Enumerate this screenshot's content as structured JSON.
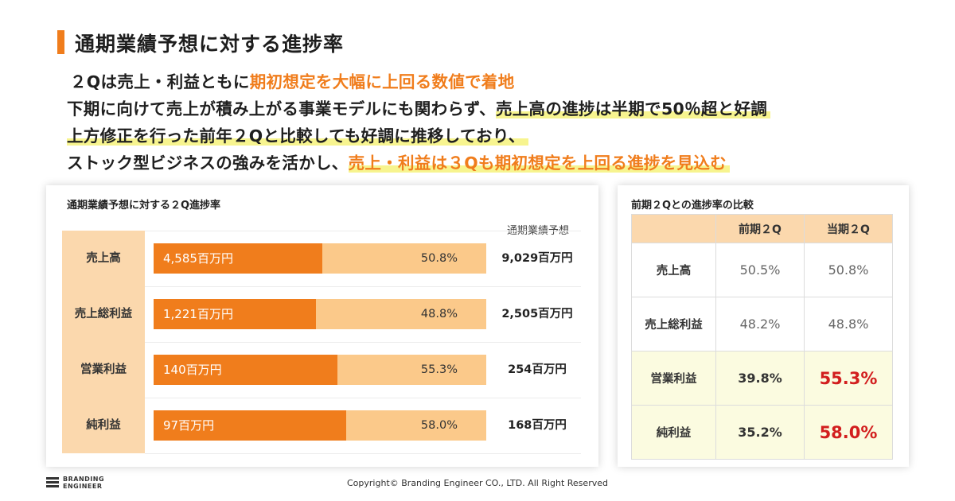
{
  "slide_title": "通期業績予想に対する進捗率",
  "messages": {
    "line1_a": "２Qは売上・利益ともに",
    "line1_b": "期初想定を大幅に上回る数値で着地",
    "line2_a": "下期に向けて売上が積み上がる事業モデルにも関わらず、",
    "line2_b": "売上高の進捗は半期で50％超と好調",
    "line3_a": "上方修正を行った前年２Qと比較しても好調に推移しており、",
    "line4_a": "ストック型ビジネスの強みを活かし、",
    "line4_b": "売上・利益は３Qも期初想定を上回る進捗を見込む"
  },
  "colors": {
    "accent": "#f07d1c",
    "bar_remaining": "#fbc98a",
    "label_bg": "#fbd8ad",
    "highlight": "#f7f48f",
    "emphasis_red": "#d21e1e"
  },
  "chart_data": [
    {
      "type": "bar",
      "orientation": "horizontal",
      "title": "通期業績予想に対する２Q進捗率",
      "forecast_header": "通期業績予想",
      "xlim": [
        0,
        100
      ],
      "rows": [
        {
          "category": "売上高",
          "amount_label": "4,585百万円",
          "progress": 50.8,
          "progress_label": "50.8%",
          "forecast_label": "9,029百万円"
        },
        {
          "category": "売上総利益",
          "amount_label": "1,221百万円",
          "progress": 48.8,
          "progress_label": "48.8%",
          "forecast_label": "2,505百万円"
        },
        {
          "category": "営業利益",
          "amount_label": "140百万円",
          "progress": 55.3,
          "progress_label": "55.3%",
          "forecast_label": "254百万円"
        },
        {
          "category": "純利益",
          "amount_label": "97百万円",
          "progress": 58.0,
          "progress_label": "58.0%",
          "forecast_label": "168百万円"
        }
      ]
    },
    {
      "type": "table",
      "title": "前期２Qとの進捗率の比較",
      "columns": [
        "前期２Q",
        "当期２Q"
      ],
      "rows": [
        {
          "category": "売上高",
          "prev": "50.5%",
          "curr": "50.8%",
          "highlight": false
        },
        {
          "category": "売上総利益",
          "prev": "48.2%",
          "curr": "48.8%",
          "highlight": false
        },
        {
          "category": "営業利益",
          "prev": "39.8%",
          "curr": "55.3%",
          "highlight": true
        },
        {
          "category": "純利益",
          "prev": "35.2%",
          "curr": "58.0%",
          "highlight": true
        }
      ]
    }
  ],
  "footer": {
    "logo_line1": "BRANDING",
    "logo_line2": "ENGINEER",
    "copyright": "Copyright© Branding Engineer CO., LTD. All Right Reserved"
  }
}
